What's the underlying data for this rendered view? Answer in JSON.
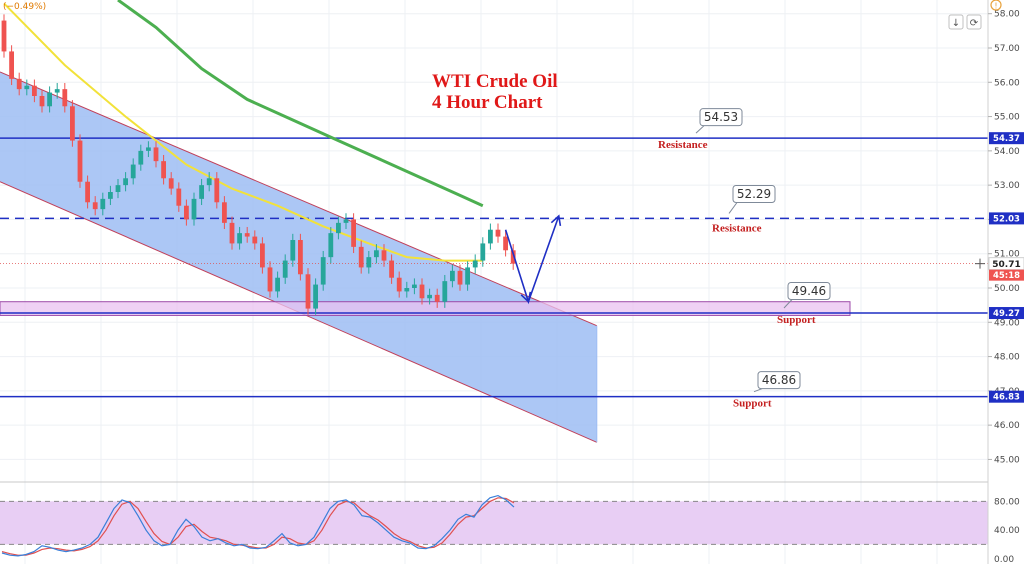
{
  "header": {
    "change": "(−0.49%)"
  },
  "toolbar": {
    "alert_glyph": "!",
    "down_glyph": "↓",
    "cycle_glyph": "⟳"
  },
  "chart_data": {
    "type": "candlestick",
    "title_line1": "WTI Crude Oil",
    "title_line2": "4 Hour Chart",
    "ylim": [
      44.4,
      58.4
    ],
    "y_ticks": [
      "58.00",
      "57.00",
      "56.00",
      "55.00",
      "54.00",
      "53.00",
      "52.00",
      "51.00",
      "50.00",
      "49.00",
      "48.00",
      "47.00",
      "46.00",
      "45.00"
    ],
    "current_price": "50.71",
    "countdown": "45:18",
    "levels": [
      {
        "name": "Resistance",
        "price": 54.37,
        "tag": "54.37",
        "callout": "54.53",
        "style": "solid"
      },
      {
        "name": "Resistance",
        "price": 52.03,
        "tag": "52.03",
        "callout": "52.29",
        "style": "dashed"
      },
      {
        "name": "Support",
        "price": 49.27,
        "tag": "49.27",
        "callout": "49.46",
        "style": "solid"
      },
      {
        "name": "Support",
        "price": 46.83,
        "tag": "46.83",
        "callout": "46.86",
        "style": "solid"
      }
    ],
    "support_zone": [
      49.2,
      49.6
    ],
    "channel": {
      "start": 0,
      "end": 78,
      "upper": [
        56.3,
        48.9
      ],
      "lower": [
        53.1,
        45.5
      ]
    },
    "ma_fast": [
      [
        0,
        58.3
      ],
      [
        8,
        56.5
      ],
      [
        16,
        55.0
      ],
      [
        24,
        53.6
      ],
      [
        30,
        52.9
      ],
      [
        36,
        52.4
      ],
      [
        42,
        51.8
      ],
      [
        48,
        51.3
      ],
      [
        53,
        50.9
      ],
      [
        58,
        50.8
      ],
      [
        63,
        50.8
      ]
    ],
    "ma_slow": [
      [
        15,
        58.4
      ],
      [
        20,
        57.6
      ],
      [
        26,
        56.4
      ],
      [
        32,
        55.5
      ],
      [
        38,
        54.9
      ],
      [
        44,
        54.3
      ],
      [
        50,
        53.7
      ],
      [
        55,
        53.2
      ],
      [
        60,
        52.7
      ],
      [
        63,
        52.4
      ]
    ],
    "candles": [
      [
        57.8,
        56.9
      ],
      [
        56.9,
        56.1
      ],
      [
        56.1,
        55.8
      ],
      [
        55.8,
        55.9
      ],
      [
        55.9,
        55.6
      ],
      [
        55.6,
        55.3
      ],
      [
        55.3,
        55.7
      ],
      [
        55.7,
        55.8
      ],
      [
        55.8,
        55.3
      ],
      [
        55.3,
        54.3
      ],
      [
        54.3,
        53.1
      ],
      [
        53.1,
        52.5
      ],
      [
        52.5,
        52.3
      ],
      [
        52.3,
        52.6
      ],
      [
        52.6,
        52.8
      ],
      [
        52.8,
        53.0
      ],
      [
        53.0,
        53.2
      ],
      [
        53.2,
        53.6
      ],
      [
        53.6,
        54.0
      ],
      [
        54.0,
        54.1
      ],
      [
        54.1,
        53.7
      ],
      [
        53.7,
        53.2
      ],
      [
        53.2,
        52.9
      ],
      [
        52.9,
        52.4
      ],
      [
        52.4,
        52.0
      ],
      [
        52.0,
        52.6
      ],
      [
        52.6,
        53.0
      ],
      [
        53.0,
        53.2
      ],
      [
        53.2,
        52.5
      ],
      [
        52.5,
        51.9
      ],
      [
        51.9,
        51.3
      ],
      [
        51.3,
        51.6
      ],
      [
        51.6,
        51.5
      ],
      [
        51.5,
        51.3
      ],
      [
        51.3,
        50.6
      ],
      [
        50.6,
        49.9
      ],
      [
        49.9,
        50.3
      ],
      [
        50.3,
        50.8
      ],
      [
        50.8,
        51.4
      ],
      [
        51.4,
        50.4
      ],
      [
        50.4,
        49.4
      ],
      [
        49.4,
        50.1
      ],
      [
        50.1,
        50.9
      ],
      [
        50.9,
        51.6
      ],
      [
        51.6,
        51.9
      ],
      [
        51.9,
        52.0
      ],
      [
        52.0,
        51.2
      ],
      [
        51.2,
        50.6
      ],
      [
        50.6,
        50.9
      ],
      [
        50.9,
        51.1
      ],
      [
        51.1,
        50.8
      ],
      [
        50.8,
        50.3
      ],
      [
        50.3,
        49.9
      ],
      [
        49.9,
        50.0
      ],
      [
        50.0,
        50.1
      ],
      [
        50.1,
        49.7
      ],
      [
        49.7,
        49.8
      ],
      [
        49.8,
        49.6
      ],
      [
        49.6,
        50.2
      ],
      [
        50.2,
        50.5
      ],
      [
        50.5,
        50.1
      ],
      [
        50.1,
        50.6
      ],
      [
        50.6,
        50.8
      ],
      [
        50.8,
        51.3
      ],
      [
        51.3,
        51.7
      ],
      [
        51.7,
        51.5
      ],
      [
        51.5,
        51.1
      ],
      [
        51.1,
        50.71
      ]
    ],
    "projection": [
      [
        66,
        51.7
      ],
      [
        69,
        49.6
      ],
      [
        73,
        52.1
      ]
    ],
    "stochastic": {
      "ylim": [
        0,
        100
      ],
      "y_ticks": [
        "80.00",
        "40.00",
        "0.00"
      ],
      "bands": [
        20,
        80
      ],
      "k": [
        8,
        5,
        4,
        6,
        10,
        18,
        16,
        12,
        10,
        12,
        15,
        20,
        30,
        50,
        70,
        82,
        78,
        60,
        40,
        25,
        18,
        20,
        40,
        55,
        45,
        30,
        25,
        28,
        22,
        18,
        20,
        15,
        14,
        16,
        25,
        35,
        22,
        18,
        20,
        30,
        50,
        70,
        80,
        82,
        75,
        60,
        58,
        50,
        40,
        30,
        25,
        22,
        15,
        14,
        18,
        28,
        40,
        55,
        62,
        58,
        75,
        85,
        88,
        82,
        72
      ],
      "d": [
        10,
        7,
        5,
        5,
        8,
        13,
        15,
        14,
        12,
        11,
        13,
        17,
        25,
        40,
        60,
        76,
        80,
        70,
        52,
        35,
        24,
        20,
        30,
        45,
        48,
        38,
        30,
        28,
        25,
        20,
        19,
        17,
        15,
        15,
        20,
        30,
        28,
        22,
        20,
        25,
        40,
        60,
        75,
        80,
        78,
        68,
        60,
        54,
        45,
        35,
        28,
        24,
        18,
        15,
        16,
        22,
        34,
        48,
        58,
        60,
        70,
        80,
        85,
        84,
        78
      ]
    }
  }
}
